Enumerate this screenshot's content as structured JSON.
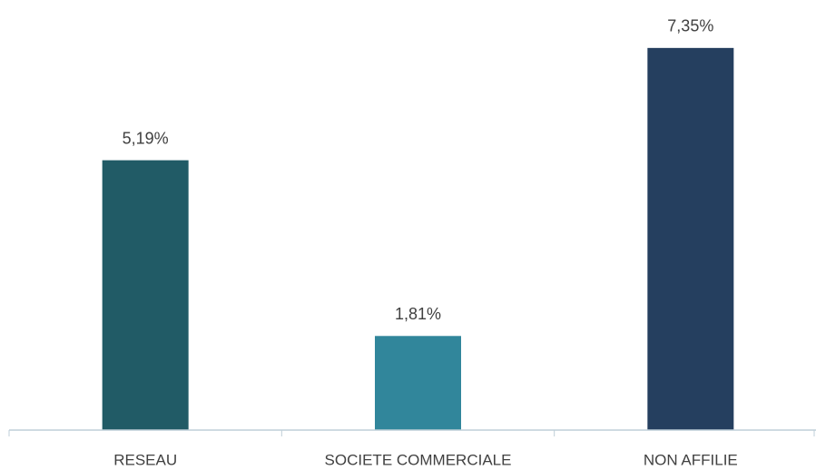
{
  "chart_data": {
    "type": "bar",
    "categories": [
      "RESEAU",
      "SOCIETE COMMERCIALE",
      "NON AFFILIE"
    ],
    "values": [
      5.19,
      1.81,
      7.35
    ],
    "value_labels": [
      "5,19%",
      "1,81%",
      "7,35%"
    ],
    "colors": [
      "#215b66",
      "#31869b",
      "#253f5f"
    ]
  }
}
